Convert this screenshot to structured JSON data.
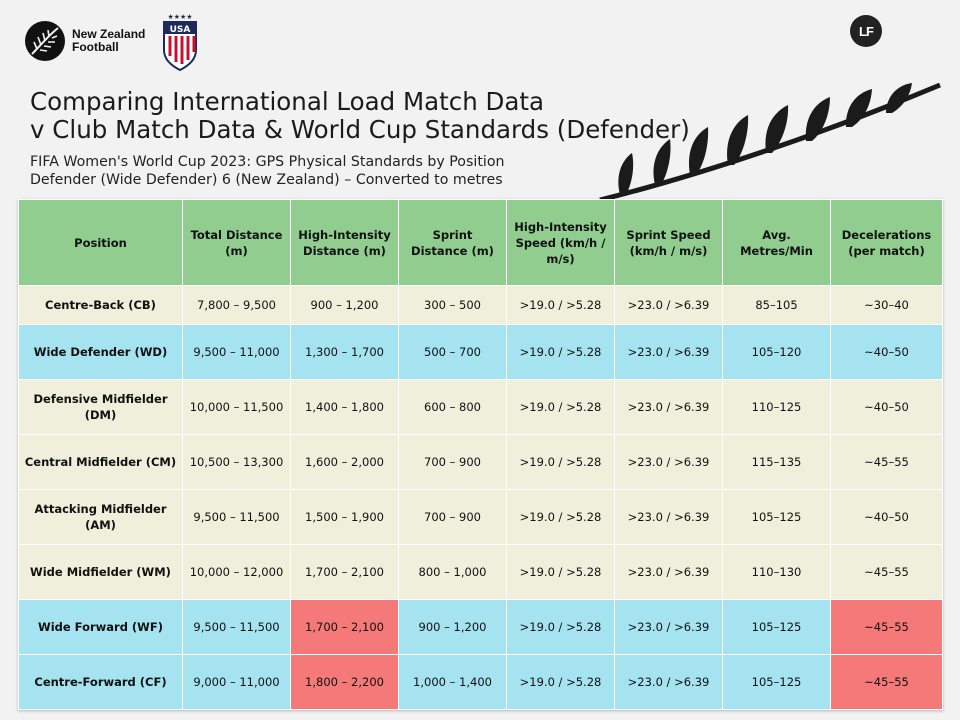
{
  "logos": {
    "nzf_line1": "New Zealand",
    "nzf_line2": "Football",
    "lf_text": "LF"
  },
  "title_line1": "Comparing International Load Match Data",
  "title_line2": "v Club Match Data & World Cup Standards (Defender)",
  "subtitle_line1": "FIFA Women's World Cup 2023: GPS Physical Standards by Position",
  "subtitle_line2": "Defender (Wide Defender) 6 (New Zealand) – Converted to metres",
  "colors": {
    "header": "#90cd8f",
    "row_cream": "#efefdc",
    "row_blue": "#a4e3ef",
    "highlight_red": "#f57978"
  },
  "table": {
    "headers": [
      "Position",
      "Total Distance (m)",
      "High-Intensity Distance (m)",
      "Sprint Distance (m)",
      "High-Intensity Speed (km/h / m/s)",
      "Sprint Speed (km/h / m/s)",
      "Avg. Metres/Min",
      "Decelerations (per match)"
    ],
    "rows": [
      {
        "cells": [
          "Centre-Back (CB)",
          "7,800 – 9,500",
          "900 – 1,200",
          "300 – 500",
          ">19.0 / >5.28",
          ">23.0 / >6.39",
          "85–105",
          "~30–40"
        ]
      },
      {
        "cells": [
          "Wide Defender (WD)",
          "9,500 – 11,000",
          "1,300 – 1,700",
          "500 – 700",
          ">19.0 / >5.28",
          ">23.0 / >6.39",
          "105–120",
          "~40–50"
        ]
      },
      {
        "cells": [
          "Defensive Midfielder (DM)",
          "10,000 – 11,500",
          "1,400 – 1,800",
          "600 – 800",
          ">19.0 / >5.28",
          ">23.0 / >6.39",
          "110–125",
          "~40–50"
        ]
      },
      {
        "cells": [
          "Central Midfielder (CM)",
          "10,500 – 13,300",
          "1,600 – 2,000",
          "700 – 900",
          ">19.0 / >5.28",
          ">23.0 / >6.39",
          "115–135",
          "~45–55"
        ]
      },
      {
        "cells": [
          "Attacking Midfielder (AM)",
          "9,500 – 11,500",
          "1,500 – 1,900",
          "700 – 900",
          ">19.0 / >5.28",
          ">23.0 / >6.39",
          "105–125",
          "~40–50"
        ]
      },
      {
        "cells": [
          "Wide Midfielder (WM)",
          "10,000 – 12,000",
          "1,700 – 2,100",
          "800 – 1,000",
          ">19.0 / >5.28",
          ">23.0 / >6.39",
          "110–130",
          "~45–55"
        ]
      },
      {
        "cells": [
          "Wide Forward (WF)",
          "9,500 – 11,500",
          "1,700 – 2,100",
          "900 – 1,200",
          ">19.0 / >5.28",
          ">23.0 / >6.39",
          "105–125",
          "~45–55"
        ]
      },
      {
        "cells": [
          "Centre-Forward (CF)",
          "9,000 – 11,000",
          "1,800 – 2,200",
          "1,000 – 1,400",
          ">19.0 / >5.28",
          ">23.0 / >6.39",
          "105–125",
          "~45–55"
        ]
      }
    ]
  }
}
